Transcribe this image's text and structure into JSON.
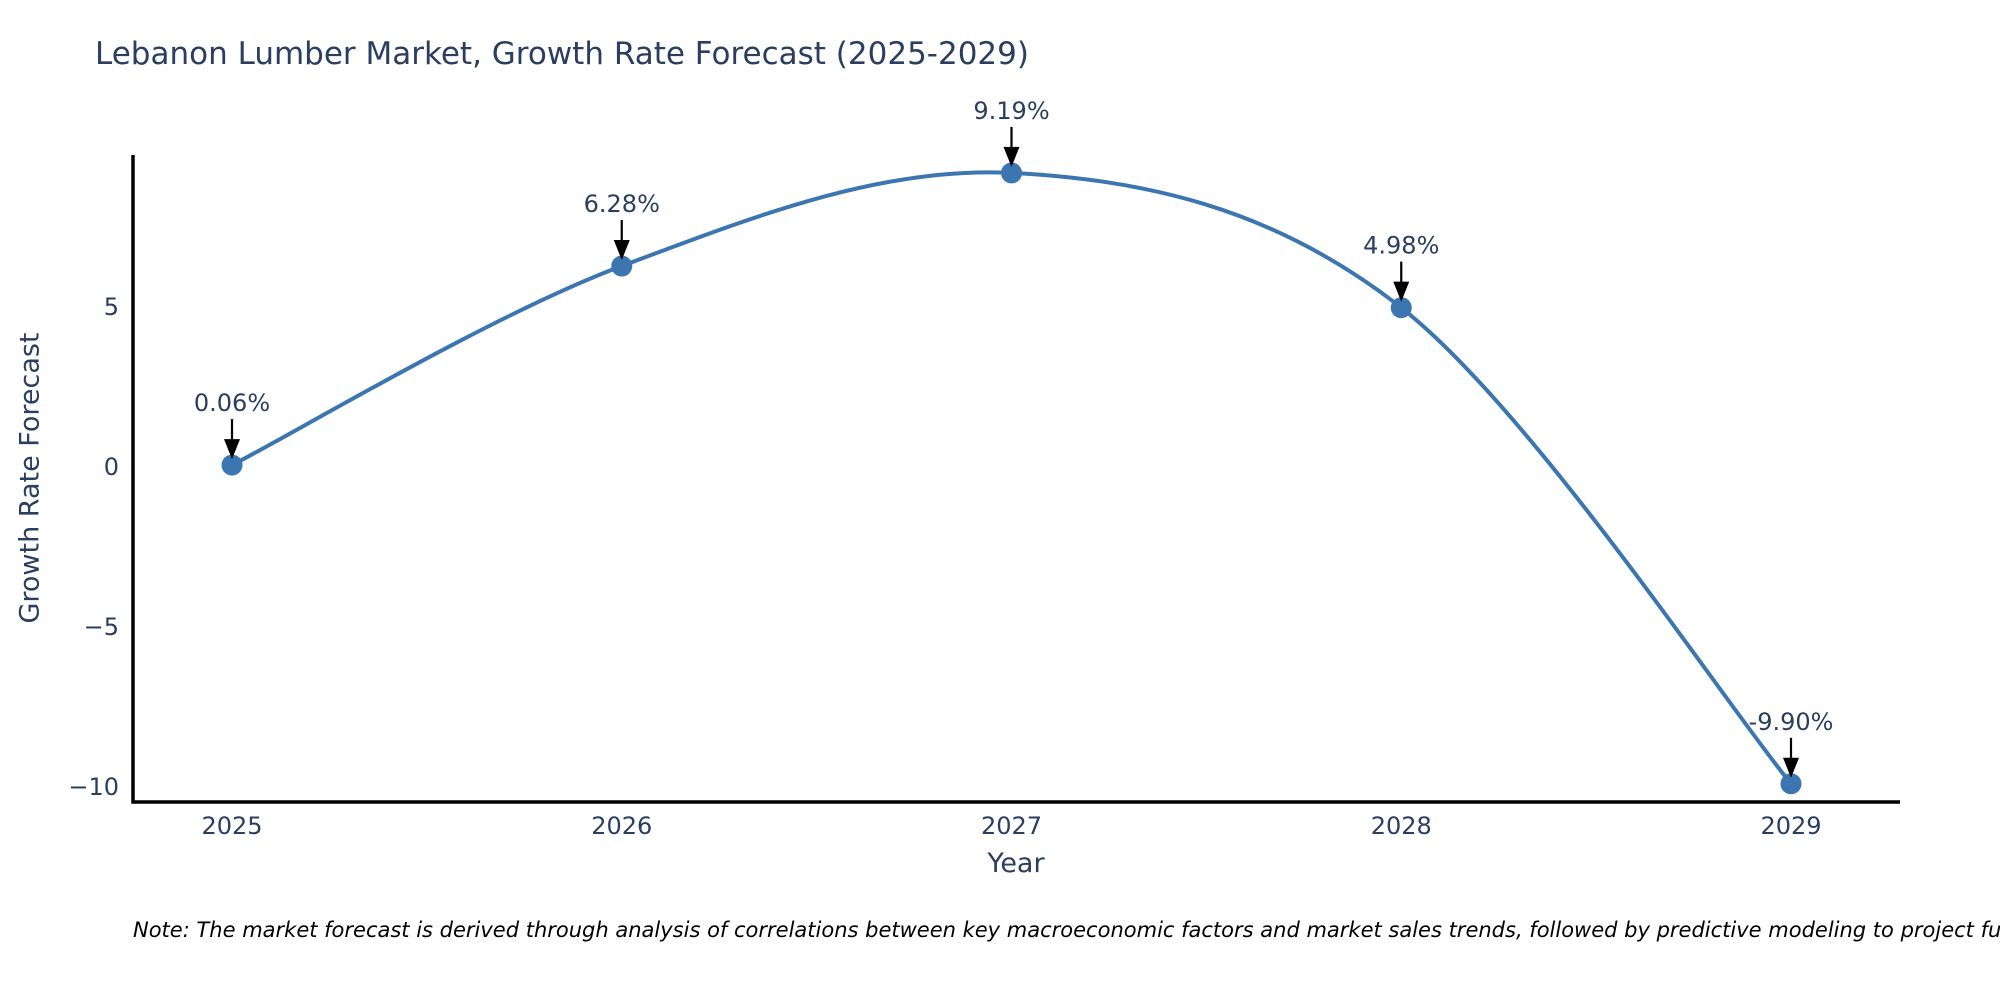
{
  "title": "Lebanon Lumber Market, Growth Rate Forecast (2025-2029)",
  "note": "Note: The market forecast is derived through analysis of correlations between key macroeconomic factors and market sales trends, followed by predictive modeling to project future sales.",
  "chart_data": {
    "type": "line",
    "title": "Lebanon Lumber Market, Growth Rate Forecast (2025-2029)",
    "xlabel": "Year",
    "ylabel": "Growth Rate Forecast",
    "x": [
      2025,
      2026,
      2027,
      2028,
      2029
    ],
    "values": [
      0.06,
      6.28,
      9.19,
      4.98,
      -9.9
    ],
    "point_labels": [
      "0.06%",
      "6.28%",
      "9.19%",
      "4.98%",
      "-9.90%"
    ],
    "xticks": [
      "2025",
      "2026",
      "2027",
      "2028",
      "2029"
    ],
    "yticks": [
      5,
      0,
      -5,
      -10
    ],
    "xlim": [
      2024.75,
      2029.28
    ],
    "ylim": [
      -10.5,
      9.8
    ],
    "line_shape": "spline",
    "grid": false,
    "legend": "none",
    "colors": {
      "line": "#3b76b0",
      "marker": "#3b76b0",
      "axis": "#000000",
      "tick_text": "#2a3f5f",
      "annotation_text": "#2a3f5f",
      "annotation_arrow": "#000000",
      "title_text": "#2a3f5f",
      "note_text": "#000000",
      "background": "#ffffff"
    }
  }
}
